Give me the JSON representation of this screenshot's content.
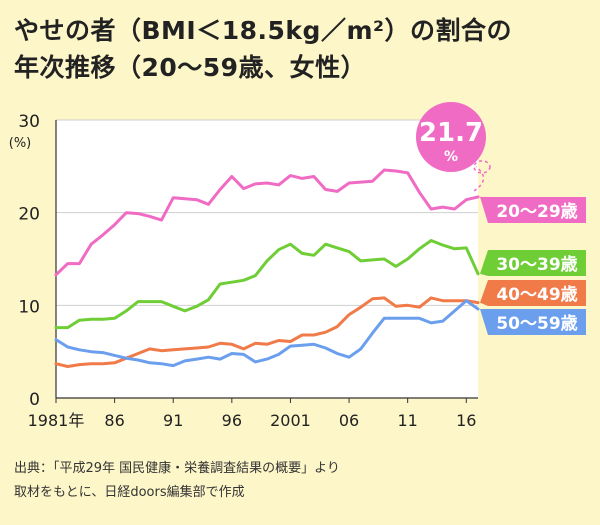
{
  "title": {
    "line1": "やせの者（BMI＜18.5kg／m²）の割合の",
    "line2": "年次推移（20〜59歳、女性）"
  },
  "source": {
    "line1": "出典：「平成29年 国民健康・栄養調査結果の概要」より",
    "line2": "取材をもとに、日経doors編集部で作成"
  },
  "chart_data": {
    "type": "line",
    "y_unit_label": "(%)",
    "ylim": [
      0,
      30
    ],
    "y_ticks": [
      0,
      10,
      20,
      30
    ],
    "xlim": [
      1981,
      2017
    ],
    "x_ticks": [
      {
        "value": 1981,
        "label": "1981年"
      },
      {
        "value": 1986,
        "label": "86"
      },
      {
        "value": 1991,
        "label": "91"
      },
      {
        "value": 1996,
        "label": "96"
      },
      {
        "value": 2001,
        "label": "2001"
      },
      {
        "value": 2006,
        "label": "06"
      },
      {
        "value": 2011,
        "label": "11"
      },
      {
        "value": 2016,
        "label": "16"
      }
    ],
    "grid": "horizontal",
    "x": [
      1981,
      1982,
      1983,
      1984,
      1985,
      1986,
      1987,
      1988,
      1989,
      1990,
      1991,
      1992,
      1993,
      1994,
      1995,
      1996,
      1997,
      1998,
      1999,
      2000,
      2001,
      2002,
      2003,
      2004,
      2005,
      2006,
      2007,
      2008,
      2009,
      2010,
      2011,
      2012,
      2013,
      2014,
      2015,
      2016,
      2017
    ],
    "series": [
      {
        "name": "20〜29歳",
        "color": "#f06bc4",
        "values": [
          13.3,
          14.5,
          14.5,
          16.6,
          17.6,
          18.7,
          20.0,
          19.9,
          19.6,
          19.2,
          21.6,
          21.5,
          21.4,
          20.9,
          22.5,
          23.9,
          22.6,
          23.1,
          23.2,
          23.0,
          24.0,
          23.7,
          23.9,
          22.5,
          22.3,
          23.2,
          23.3,
          23.4,
          24.6,
          24.5,
          24.3,
          22.2,
          20.4,
          20.6,
          20.4,
          21.4,
          21.7
        ]
      },
      {
        "name": "30〜39歳",
        "color": "#6fce36",
        "values": [
          7.6,
          7.6,
          8.4,
          8.5,
          8.5,
          8.6,
          9.4,
          10.4,
          10.4,
          10.4,
          9.9,
          9.4,
          9.9,
          10.6,
          12.3,
          12.5,
          12.7,
          13.2,
          14.8,
          16.0,
          16.6,
          15.6,
          15.4,
          16.6,
          16.2,
          15.8,
          14.8,
          14.9,
          15.0,
          14.2,
          15.0,
          16.1,
          17.0,
          16.5,
          16.1,
          16.2,
          13.4
        ]
      },
      {
        "name": "40〜49歳",
        "color": "#f07a48",
        "values": [
          3.7,
          3.4,
          3.6,
          3.7,
          3.7,
          3.8,
          4.3,
          4.8,
          5.3,
          5.1,
          5.2,
          5.3,
          5.4,
          5.5,
          5.9,
          5.8,
          5.3,
          5.9,
          5.8,
          6.2,
          6.1,
          6.8,
          6.8,
          7.1,
          7.7,
          9.0,
          9.8,
          10.7,
          10.8,
          9.9,
          10.0,
          9.8,
          10.8,
          10.5,
          10.5,
          10.5,
          10.3
        ]
      },
      {
        "name": "50〜59歳",
        "color": "#6b9fee",
        "values": [
          6.3,
          5.5,
          5.2,
          5.0,
          4.9,
          4.6,
          4.3,
          4.1,
          3.8,
          3.7,
          3.5,
          4.0,
          4.2,
          4.4,
          4.2,
          4.8,
          4.7,
          3.9,
          4.2,
          4.7,
          5.6,
          5.7,
          5.8,
          5.4,
          4.8,
          4.4,
          5.3,
          7.0,
          8.6,
          8.6,
          8.6,
          8.6,
          8.1,
          8.3,
          9.4,
          10.5,
          9.6
        ]
      }
    ],
    "callout": {
      "value": "21.7",
      "unit": "%"
    }
  }
}
